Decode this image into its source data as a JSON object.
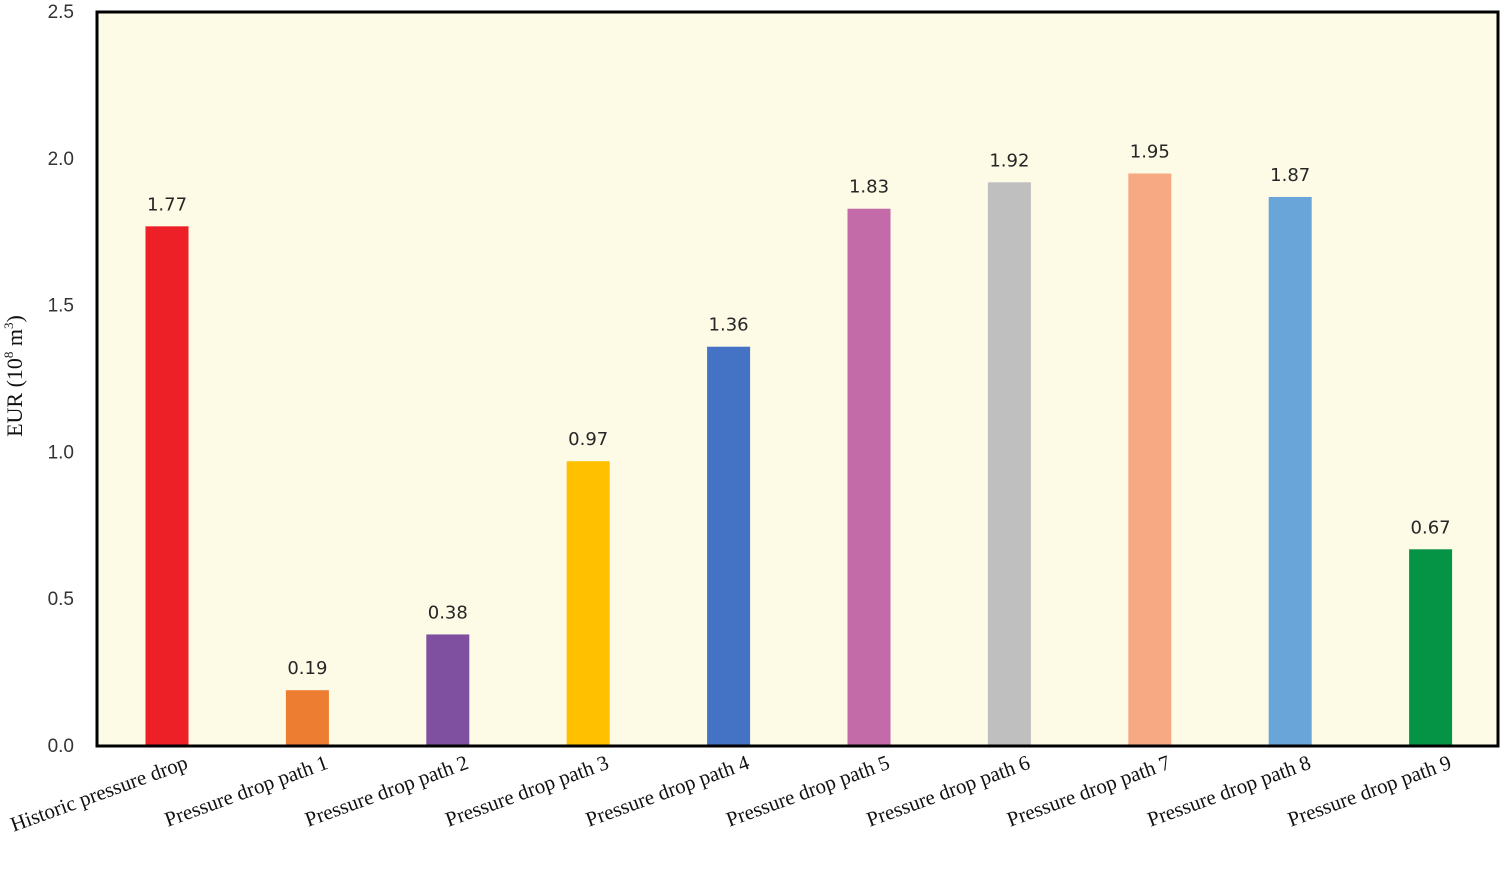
{
  "chart_data": {
    "type": "bar",
    "title": "",
    "xlabel": "",
    "ylabel": "EUR (10",
    "ylabel_sup1": "8",
    "ylabel_mid": " m",
    "ylabel_sup2": "3",
    "ylabel_end": ")",
    "ylim": [
      0,
      2.5
    ],
    "yticks": [
      "0.0",
      "0.5",
      "1.0",
      "1.5",
      "2.0",
      "2.5"
    ],
    "ytick_values": [
      0,
      0.5,
      1.0,
      1.5,
      2.0,
      2.5
    ],
    "categories": [
      "Historic pressure drop",
      "Pressure drop path 1",
      "Pressure drop path 2",
      "Pressure drop path 3",
      "Pressure drop path 4",
      "Pressure drop path 5",
      "Pressure drop path 6",
      "Pressure drop path 7",
      "Pressure drop path 8",
      "Pressure drop path 9"
    ],
    "values": [
      1.77,
      0.19,
      0.38,
      0.97,
      1.36,
      1.83,
      1.92,
      1.95,
      1.87,
      0.67
    ],
    "value_labels": [
      "1.77",
      "0.19",
      "0.38",
      "0.97",
      "1.36",
      "1.83",
      "1.92",
      "1.95",
      "1.87",
      "0.67"
    ],
    "colors": [
      "#ed2027",
      "#ed7d31",
      "#7f509f",
      "#ffc000",
      "#4472c4",
      "#c36aa8",
      "#bfbfbf",
      "#f7a983",
      "#6aa5da",
      "#059445"
    ],
    "plot_background": "#fdfae6",
    "grid": false
  }
}
